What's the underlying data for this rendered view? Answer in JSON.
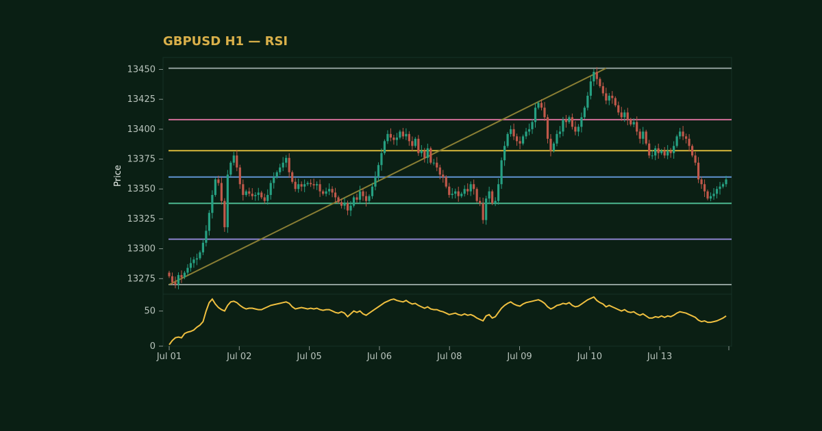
{
  "chart_data": {
    "type": "candlestick",
    "title": "GBPUSD H1 — RSI",
    "ylabel": "Price",
    "x_tick_labels": [
      "Jul 01",
      "Jul 02",
      "Jul 05",
      "Jul 06",
      "Jul 08",
      "Jul 09",
      "Jul 10",
      "Jul 13"
    ],
    "price_panel": {
      "ylim": [
        13262,
        13460
      ],
      "y_ticks": [
        13275,
        13300,
        13325,
        13350,
        13375,
        13400,
        13425,
        13450
      ],
      "candles_close": [
        13277,
        13272,
        13270,
        13278,
        13276,
        13280,
        13284,
        13288,
        13291,
        13292,
        13297,
        13305,
        13315,
        13330,
        13345,
        13358,
        13355,
        13340,
        13318,
        13362,
        13372,
        13378,
        13368,
        13354,
        13345,
        13348,
        13346,
        13344,
        13345,
        13347,
        13343,
        13340,
        13345,
        13355,
        13360,
        13364,
        13368,
        13372,
        13376,
        13364,
        13356,
        13350,
        13354,
        13352,
        13354,
        13355,
        13354,
        13353,
        13354,
        13348,
        13346,
        13348,
        13350,
        13347,
        13343,
        13339,
        13336,
        13338,
        13332,
        13336,
        13343,
        13341,
        13348,
        13344,
        13340,
        13344,
        13352,
        13360,
        13370,
        13380,
        13390,
        13396,
        13393,
        13391,
        13393,
        13398,
        13394,
        13396,
        13390,
        13386,
        13392,
        13380,
        13382,
        13376,
        13384,
        13372,
        13372,
        13368,
        13362,
        13360,
        13352,
        13345,
        13346,
        13348,
        13344,
        13346,
        13350,
        13348,
        13354,
        13350,
        13340,
        13338,
        13324,
        13342,
        13348,
        13338,
        13340,
        13354,
        13374,
        13386,
        13396,
        13400,
        13394,
        13390,
        13388,
        13394,
        13398,
        13400,
        13406,
        13418,
        13422,
        13418,
        13410,
        13392,
        13382,
        13388,
        13396,
        13398,
        13408,
        13406,
        13410,
        13402,
        13398,
        13402,
        13410,
        13418,
        13428,
        13440,
        13448,
        13442,
        13436,
        13430,
        13424,
        13428,
        13426,
        13420,
        13414,
        13410,
        13414,
        13408,
        13404,
        13406,
        13398,
        13392,
        13398,
        13388,
        13378,
        13378,
        13384,
        13380,
        13382,
        13378,
        13382,
        13380,
        13386,
        13394,
        13398,
        13394,
        13392,
        13386,
        13378,
        13372,
        13358,
        13354,
        13348,
        13342,
        13344,
        13346,
        13350,
        13352,
        13354,
        13358
      ],
      "horizontal_levels": [
        {
          "value": 13451,
          "color": "#8f9e9a"
        },
        {
          "value": 13408,
          "color": "#d4709a"
        },
        {
          "value": 13382,
          "color": "#d9b83a"
        },
        {
          "value": 13360,
          "color": "#5f93d1"
        },
        {
          "value": 13338,
          "color": "#4cb890"
        },
        {
          "value": 13308,
          "color": "#8d84cf"
        },
        {
          "value": 13270,
          "color": "#8f9e9a"
        }
      ],
      "trend_line": {
        "from_index": 0,
        "from_value": 13270,
        "to_index": 142,
        "to_value": 13451,
        "color": "#8a7e34"
      }
    },
    "rsi_panel": {
      "ylim": [
        0,
        74
      ],
      "y_ticks": [
        0,
        50
      ],
      "color": "#f0c040",
      "values": [
        2,
        8,
        12,
        13,
        12,
        18,
        20,
        21,
        23,
        27,
        30,
        35,
        50,
        62,
        67,
        60,
        55,
        52,
        50,
        58,
        63,
        64,
        62,
        58,
        55,
        53,
        54,
        54,
        53,
        52,
        52,
        54,
        56,
        58,
        59,
        60,
        61,
        62,
        63,
        61,
        56,
        53,
        54,
        55,
        54,
        53,
        54,
        53,
        54,
        52,
        51,
        52,
        52,
        50,
        48,
        47,
        49,
        47,
        42,
        46,
        50,
        48,
        50,
        46,
        44,
        47,
        50,
        53,
        56,
        59,
        62,
        64,
        66,
        67,
        65,
        64,
        63,
        65,
        62,
        60,
        61,
        58,
        56,
        54,
        56,
        53,
        52,
        52,
        50,
        49,
        47,
        45,
        46,
        47,
        45,
        44,
        46,
        44,
        45,
        43,
        40,
        38,
        36,
        43,
        45,
        40,
        42,
        48,
        54,
        58,
        61,
        63,
        60,
        58,
        57,
        60,
        62,
        63,
        64,
        65,
        66,
        64,
        61,
        56,
        53,
        55,
        58,
        59,
        61,
        60,
        62,
        58,
        56,
        57,
        60,
        63,
        66,
        68,
        70,
        65,
        62,
        60,
        56,
        58,
        56,
        54,
        52,
        50,
        52,
        49,
        48,
        49,
        46,
        44,
        46,
        43,
        40,
        40,
        42,
        41,
        43,
        41,
        43,
        42,
        44,
        47,
        49,
        48,
        47,
        45,
        43,
        41,
        37,
        35,
        36,
        34,
        34,
        35,
        36,
        38,
        40,
        43
      ]
    }
  }
}
